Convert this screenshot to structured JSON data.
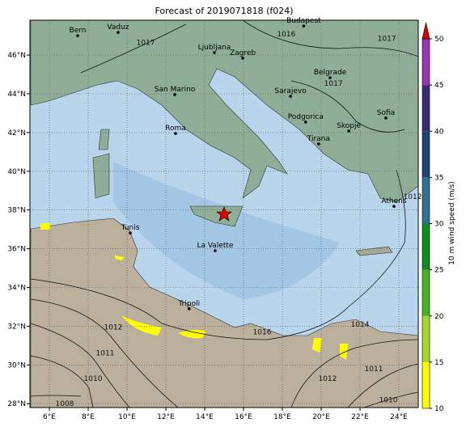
{
  "title": "Forecast of 2019071818 (f024)",
  "map": {
    "lon_lim": [
      5,
      25
    ],
    "lat_lim": [
      27.8,
      47.8
    ],
    "xticks": [
      {
        "value": 6,
        "label": "6°E"
      },
      {
        "value": 8,
        "label": "8°E"
      },
      {
        "value": 10,
        "label": "10°E"
      },
      {
        "value": 12,
        "label": "12°E"
      },
      {
        "value": 14,
        "label": "14°E"
      },
      {
        "value": 16,
        "label": "16°E"
      },
      {
        "value": 18,
        "label": "18°E"
      },
      {
        "value": 20,
        "label": "20°E"
      },
      {
        "value": 22,
        "label": "22°E"
      },
      {
        "value": 24,
        "label": "24°E"
      }
    ],
    "yticks": [
      {
        "value": 28,
        "label": "28°N"
      },
      {
        "value": 30,
        "label": "30°N"
      },
      {
        "value": 32,
        "label": "32°N"
      },
      {
        "value": 34,
        "label": "34°N"
      },
      {
        "value": 36,
        "label": "36°N"
      },
      {
        "value": 38,
        "label": "38°N"
      },
      {
        "value": 40,
        "label": "40°N"
      },
      {
        "value": 42,
        "label": "42°N"
      },
      {
        "value": 44,
        "label": "44°N"
      },
      {
        "value": 46,
        "label": "46°N"
      }
    ],
    "cities": [
      {
        "name": "Bern",
        "lon": 7.46,
        "lat": 47.0
      },
      {
        "name": "Vaduz",
        "lon": 9.54,
        "lat": 47.17
      },
      {
        "name": "Budapest",
        "lon": 19.1,
        "lat": 47.5
      },
      {
        "name": "Ljubljana",
        "lon": 14.5,
        "lat": 46.13
      },
      {
        "name": "Zagreb",
        "lon": 15.96,
        "lat": 45.84
      },
      {
        "name": "Belgrade",
        "lon": 20.46,
        "lat": 44.83
      },
      {
        "name": "San Marino",
        "lon": 12.46,
        "lat": 43.96
      },
      {
        "name": "Sarajevo",
        "lon": 18.42,
        "lat": 43.87
      },
      {
        "name": "Podgorica",
        "lon": 19.2,
        "lat": 42.54
      },
      {
        "name": "Sofia",
        "lon": 23.33,
        "lat": 42.75
      },
      {
        "name": "Skopje",
        "lon": 21.42,
        "lat": 42.08
      },
      {
        "name": "Tirana",
        "lon": 19.87,
        "lat": 41.41
      },
      {
        "name": "Roma",
        "lon": 12.5,
        "lat": 41.95
      },
      {
        "name": "Athens",
        "lon": 23.75,
        "lat": 38.19
      },
      {
        "name": "Tunis",
        "lon": 10.17,
        "lat": 36.81
      },
      {
        "name": "La Valette",
        "lon": 14.54,
        "lat": 35.9
      },
      {
        "name": "Tripoli",
        "lon": 13.2,
        "lat": 32.9
      }
    ],
    "isobar_labels": [
      {
        "label": "1016",
        "lon": 18.2,
        "lat": 47.1
      },
      {
        "label": "1017",
        "lon": 10.96,
        "lat": 46.65
      },
      {
        "label": "1017",
        "lon": 23.38,
        "lat": 46.86
      },
      {
        "label": "1017",
        "lon": 20.63,
        "lat": 44.54
      },
      {
        "label": "1012",
        "lon": 24.71,
        "lat": 38.7
      },
      {
        "label": "1012",
        "lon": 9.29,
        "lat": 31.95
      },
      {
        "label": "1011",
        "lon": 8.875,
        "lat": 30.62
      },
      {
        "label": "1010",
        "lon": 8.25,
        "lat": 29.3
      },
      {
        "label": "1008",
        "lon": 6.79,
        "lat": 28.0
      },
      {
        "label": "1016",
        "lon": 16.96,
        "lat": 31.7
      },
      {
        "label": "1014",
        "lon": 22.0,
        "lat": 32.1
      },
      {
        "label": "1012",
        "lon": 20.33,
        "lat": 29.3
      },
      {
        "label": "1011",
        "lon": 22.71,
        "lat": 29.8
      },
      {
        "label": "1010",
        "lon": 23.46,
        "lat": 28.2
      }
    ]
  },
  "colorbar": {
    "label": "10 m wind speed (m/s)",
    "lim": [
      10,
      50
    ],
    "ticks": [
      10,
      15,
      20,
      25,
      30,
      35,
      40,
      45,
      50
    ],
    "colors": [
      "#ffff00",
      "#a6d62a",
      "#46b41e",
      "#0f8c1e",
      "#2d7193",
      "#1f4573",
      "#3b2a78",
      "#9a34b4"
    ],
    "extend_color": "#d40000"
  }
}
